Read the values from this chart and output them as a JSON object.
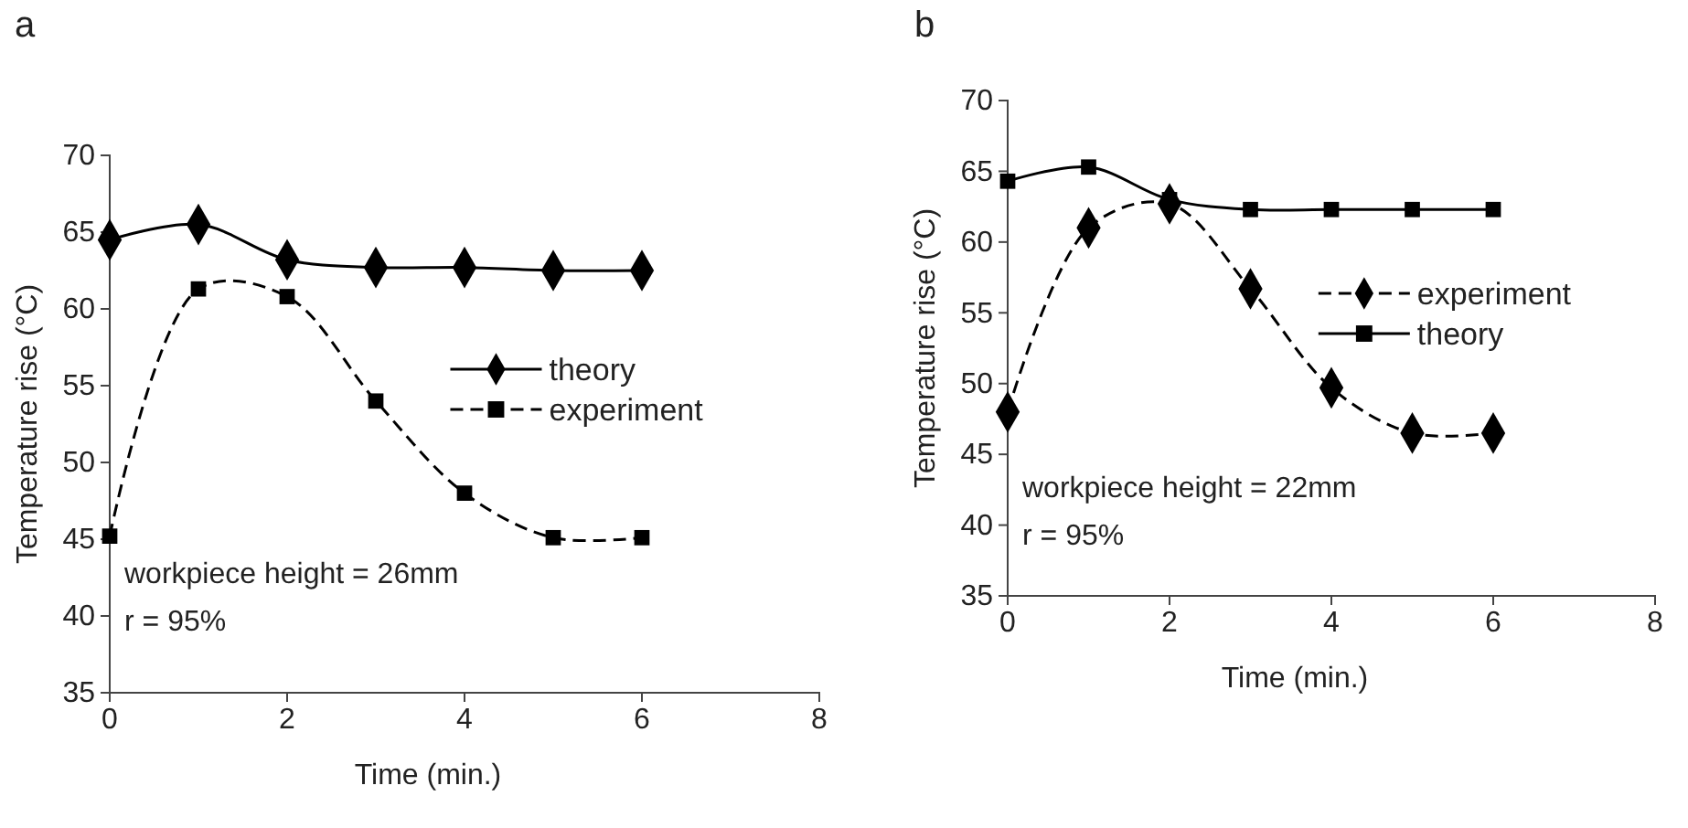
{
  "chart_data": [
    {
      "type": "line",
      "title": "a",
      "xlabel": "Time (min.)",
      "ylabel": "Temperature rise (°C)",
      "x": [
        0,
        1,
        2,
        3,
        4,
        5,
        6
      ],
      "xlim": [
        0,
        8
      ],
      "xticks": [
        0,
        2,
        4,
        6,
        8
      ],
      "ylim": [
        35,
        70
      ],
      "yticks": [
        35,
        40,
        45,
        50,
        55,
        60,
        65,
        70
      ],
      "grid": false,
      "legend": "right",
      "annotations": [
        "workpiece height = 26mm",
        "r = 95%"
      ],
      "series": [
        {
          "name": "theory",
          "color": "#000000",
          "marker": "diamond",
          "line_style": "solid",
          "values": [
            64.5,
            65.5,
            63.2,
            62.7,
            62.7,
            62.5,
            62.5
          ]
        },
        {
          "name": "experiment",
          "color": "#000000",
          "marker": "square",
          "line_style": "dashed",
          "values": [
            45.2,
            61.3,
            60.8,
            54,
            48,
            45.1,
            45.1
          ]
        }
      ]
    },
    {
      "type": "line",
      "title": "b",
      "xlabel": "Time (min.)",
      "ylabel": "Temperature rise (°C)",
      "x": [
        0,
        1,
        2,
        3,
        4,
        5,
        6
      ],
      "xlim": [
        0,
        8
      ],
      "xticks": [
        0,
        2,
        4,
        6,
        8
      ],
      "ylim": [
        35,
        70
      ],
      "yticks": [
        35,
        40,
        45,
        50,
        55,
        60,
        65,
        70
      ],
      "grid": false,
      "legend": "right",
      "annotations": [
        "workpiece height = 22mm",
        "r = 95%"
      ],
      "series": [
        {
          "name": "experiment",
          "color": "#000000",
          "marker": "diamond",
          "line_style": "dashed",
          "values": [
            48,
            61,
            62.7,
            56.7,
            49.7,
            46.5,
            46.5
          ]
        },
        {
          "name": "theory",
          "color": "#000000",
          "marker": "square",
          "line_style": "solid",
          "values": [
            64.3,
            65.3,
            63,
            62.3,
            62.3,
            62.3,
            62.3
          ]
        }
      ]
    }
  ]
}
